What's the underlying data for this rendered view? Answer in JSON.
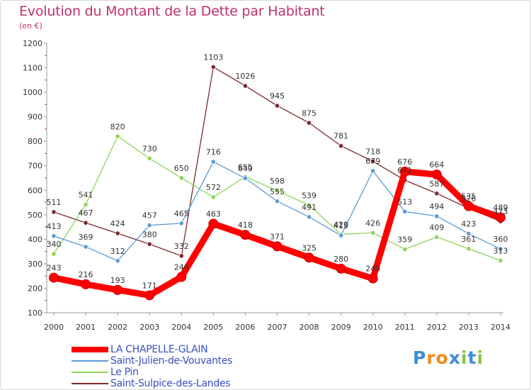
{
  "header": {
    "title": "Evolution du Montant de la Dette par Habitant",
    "subtitle": "(en €)"
  },
  "logo": {
    "letters": [
      "P",
      "r",
      "o",
      "x",
      "i",
      "t",
      "i"
    ],
    "colors": [
      "#3b8fd8",
      "#f08a1c",
      "#f08a1c",
      "#3b8fd8",
      "#8ac43f",
      "#3b8fd8",
      "#8ac43f"
    ]
  },
  "chart_data": {
    "type": "line",
    "title": "Evolution du Montant de la Dette par Habitant",
    "ylabel": "(en €)",
    "xlabel": "",
    "x": [
      2000,
      2001,
      2002,
      2003,
      2004,
      2005,
      2006,
      2007,
      2008,
      2009,
      2010,
      2011,
      2012,
      2013,
      2014
    ],
    "ylim": [
      100,
      1200
    ],
    "yticks": [
      100,
      200,
      300,
      400,
      500,
      600,
      700,
      800,
      900,
      1000,
      1100,
      1200
    ],
    "grid": false,
    "legend_position": "bottom-left",
    "series": [
      {
        "name": "LA CHAPELLE-GLAIN",
        "color": "#ff0000",
        "values": [
          243,
          216,
          193,
          171,
          246,
          463,
          418,
          371,
          325,
          280,
          240,
          676,
          664,
          535,
          489
        ]
      },
      {
        "name": "Saint-Julien-de-Vouvantes",
        "color": "#5b9bd5",
        "values": [
          413,
          369,
          312,
          457,
          465,
          716,
          649,
          555,
          491,
          415,
          679,
          513,
          494,
          423,
          360
        ]
      },
      {
        "name": "Le Pin",
        "color": "#8ed45a",
        "values": [
          340,
          541,
          820,
          730,
          650,
          572,
          655,
          598,
          539,
          420,
          426,
          359,
          409,
          361,
          313
        ]
      },
      {
        "name": "Saint-Sulpice-des-Landes",
        "color": "#7a2a2a",
        "values": [
          511,
          467,
          424,
          380,
          332,
          1103,
          1026,
          945,
          875,
          781,
          718,
          641,
          587,
          526,
          473
        ]
      }
    ]
  }
}
